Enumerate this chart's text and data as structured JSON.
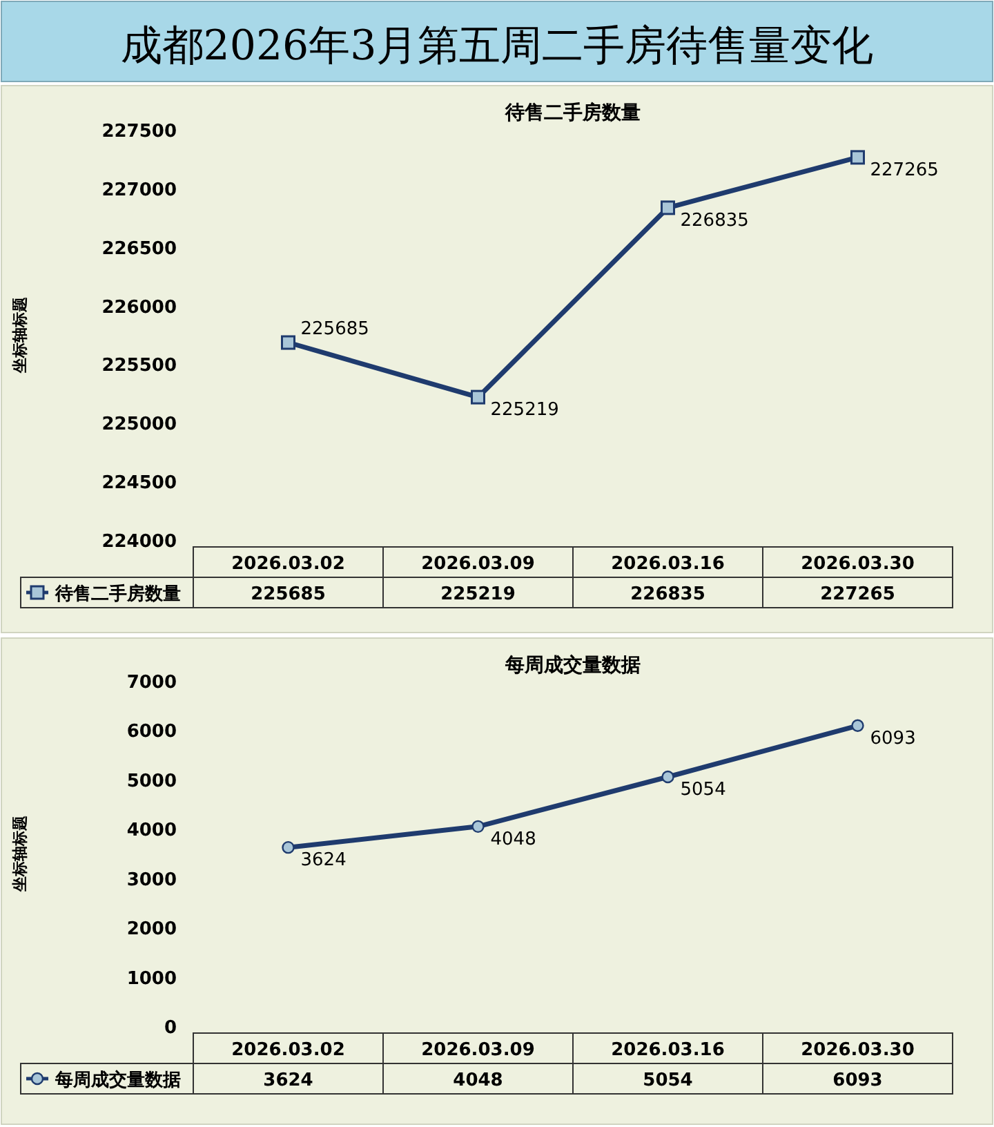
{
  "chart_data": [
    {
      "type": "other",
      "title": "成都2026年3月第五周二手房待售量变化"
    },
    {
      "type": "line",
      "title": "待售二手房数量",
      "ylabel": "坐标轴标题",
      "categories": [
        "2026.03.02",
        "2026.03.09",
        "2026.03.16",
        "2026.03.30"
      ],
      "series": [
        {
          "name": "待售二手房数量",
          "color": "#1f3b6e",
          "values": [
            225685,
            225219,
            226835,
            227265
          ]
        }
      ],
      "annotations": [
        {
          "text": "225685",
          "x": "2026.03.02",
          "y": 225685
        },
        {
          "text": "225219",
          "x": "2026.03.09",
          "y": 225219
        },
        {
          "text": "226835",
          "x": "2026.03.16",
          "y": 226835
        },
        {
          "text": "227265",
          "x": "2026.03.30",
          "y": 227265
        }
      ],
      "ylim": [
        224000,
        227500
      ],
      "yticks": [
        224000,
        224500,
        225000,
        225500,
        226000,
        226500,
        227000,
        227500
      ],
      "marker": "square",
      "data_labels": true,
      "legend": "bottom"
    },
    {
      "type": "line",
      "title": "每周成交量数据",
      "ylabel": "坐标轴标题",
      "categories": [
        "2026.03.02",
        "2026.03.09",
        "2026.03.16",
        "2026.03.30"
      ],
      "series": [
        {
          "name": "每周成交量数据",
          "color": "#1f3b6e",
          "values": [
            3624,
            4048,
            5054,
            6093
          ]
        }
      ],
      "annotations": [
        {
          "text": "3624",
          "x": "2026.03.02",
          "y": 3624
        },
        {
          "text": "4048",
          "x": "2026.03.09",
          "y": 4048
        },
        {
          "text": "5054",
          "x": "2026.03.16",
          "y": 5054
        },
        {
          "text": "6093",
          "x": "2026.03.30",
          "y": 6093
        }
      ],
      "ylim": [
        0,
        7000
      ],
      "yticks": [
        0,
        1000,
        2000,
        3000,
        4000,
        5000,
        6000,
        7000
      ],
      "marker": "circle",
      "data_labels": true,
      "legend": "bottom"
    }
  ]
}
